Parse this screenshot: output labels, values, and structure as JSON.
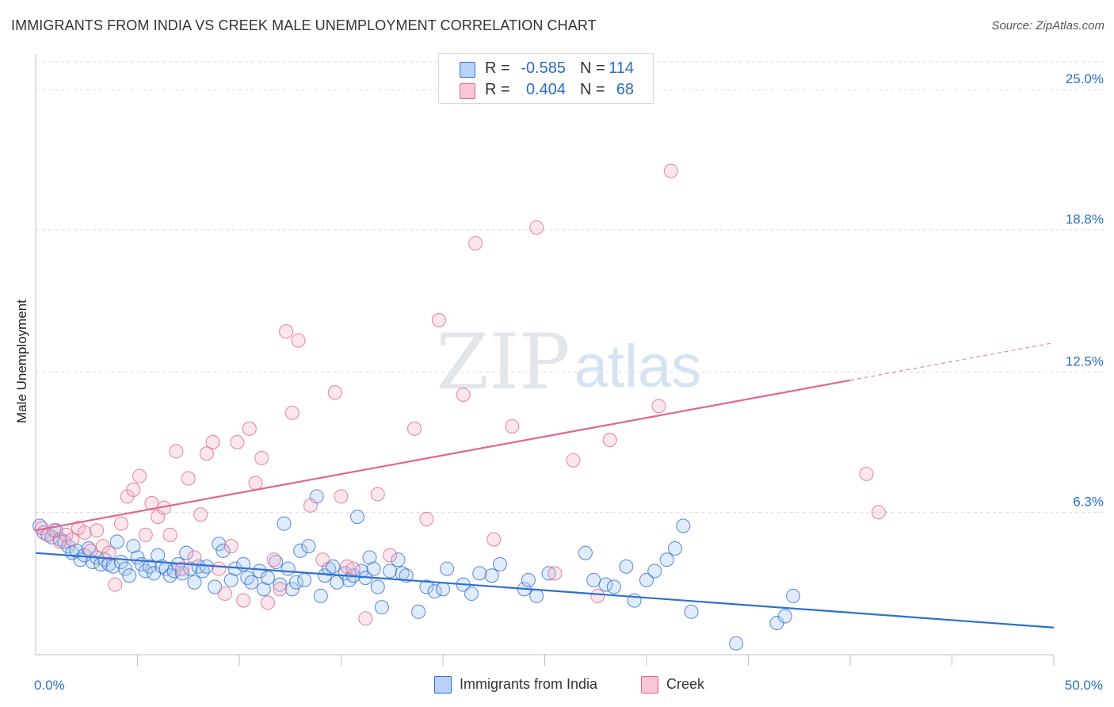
{
  "title": "IMMIGRANTS FROM INDIA VS CREEK MALE UNEMPLOYMENT CORRELATION CHART",
  "source": "Source: ZipAtlas.com",
  "watermark": {
    "zip": "ZIP",
    "atlas": "atlas"
  },
  "colors": {
    "blue": "#2f6fd1",
    "blue_fill": "#aac8f0",
    "blue_swatch": "#b8d2f5",
    "pink": "#e0668f",
    "pink_fill": "#f4b6c9",
    "pink_swatch": "#f8c6d5",
    "accent_text": "#2a6cc8",
    "grid": "#dcdcdc"
  },
  "stats": [
    {
      "r_label": "R =",
      "r_value": "-0.585",
      "n_label": "N =",
      "n_value": "114",
      "color_key": "blue"
    },
    {
      "r_label": "R =",
      "r_value": "0.404",
      "n_label": "N =",
      "n_value": "68",
      "color_key": "pink"
    }
  ],
  "legend": [
    {
      "label": "Immigrants from India",
      "color_key": "blue"
    },
    {
      "label": "Creek",
      "color_key": "pink"
    }
  ],
  "chart_data": {
    "type": "scatter",
    "title": "IMMIGRANTS FROM INDIA VS CREEK MALE UNEMPLOYMENT CORRELATION CHART",
    "xlabel": "",
    "ylabel": "Male Unemployment",
    "xlim": [
      0,
      50
    ],
    "ylim": [
      0,
      26.3
    ],
    "x_tick_labels": [
      {
        "value": 0,
        "label": "0.0%"
      },
      {
        "value": 50,
        "label": "50.0%"
      }
    ],
    "x_minor_ticks": [
      5,
      10,
      15,
      20,
      25,
      30,
      35,
      40,
      45
    ],
    "y_ticks": [
      {
        "value": 6.3,
        "label": "6.3%"
      },
      {
        "value": 12.5,
        "label": "12.5%"
      },
      {
        "value": 18.8,
        "label": "18.8%"
      },
      {
        "value": 25.0,
        "label": "25.0%"
      }
    ],
    "grid": true,
    "series": [
      {
        "name": "Immigrants from India",
        "color_key": "blue",
        "trend": {
          "x0": 0,
          "y0": 4.5,
          "x1": 50,
          "y1": 1.2,
          "dash_from": null
        },
        "points": [
          [
            0.2,
            5.7
          ],
          [
            0.4,
            5.4
          ],
          [
            0.6,
            5.3
          ],
          [
            0.8,
            5.2
          ],
          [
            1.0,
            5.5
          ],
          [
            1.2,
            5.1
          ],
          [
            1.4,
            5.0
          ],
          [
            1.6,
            4.8
          ],
          [
            1.8,
            4.5
          ],
          [
            2.0,
            4.6
          ],
          [
            2.2,
            4.2
          ],
          [
            2.4,
            4.4
          ],
          [
            2.6,
            4.7
          ],
          [
            2.8,
            4.1
          ],
          [
            3.0,
            4.3
          ],
          [
            3.2,
            4.0
          ],
          [
            3.4,
            4.2
          ],
          [
            3.6,
            4.0
          ],
          [
            3.8,
            3.9
          ],
          [
            4.0,
            5.0
          ],
          [
            4.2,
            4.1
          ],
          [
            4.4,
            3.8
          ],
          [
            4.6,
            3.5
          ],
          [
            4.8,
            4.8
          ],
          [
            5.0,
            4.3
          ],
          [
            5.2,
            4.0
          ],
          [
            5.4,
            3.7
          ],
          [
            5.6,
            3.9
          ],
          [
            5.8,
            3.6
          ],
          [
            6.0,
            4.4
          ],
          [
            6.2,
            3.9
          ],
          [
            6.4,
            3.8
          ],
          [
            6.6,
            3.5
          ],
          [
            6.8,
            3.7
          ],
          [
            7.0,
            4.0
          ],
          [
            7.2,
            3.6
          ],
          [
            7.4,
            4.5
          ],
          [
            7.6,
            3.8
          ],
          [
            7.8,
            3.2
          ],
          [
            8.0,
            3.9
          ],
          [
            8.2,
            3.7
          ],
          [
            8.4,
            3.9
          ],
          [
            8.8,
            3.0
          ],
          [
            9.0,
            4.9
          ],
          [
            9.2,
            4.6
          ],
          [
            9.6,
            3.3
          ],
          [
            9.8,
            3.8
          ],
          [
            10.2,
            4.0
          ],
          [
            10.4,
            3.4
          ],
          [
            10.6,
            3.2
          ],
          [
            11.0,
            3.7
          ],
          [
            11.2,
            2.9
          ],
          [
            11.4,
            3.4
          ],
          [
            11.8,
            4.1
          ],
          [
            12.0,
            3.1
          ],
          [
            12.2,
            5.8
          ],
          [
            12.4,
            3.8
          ],
          [
            12.6,
            2.9
          ],
          [
            12.8,
            3.2
          ],
          [
            13.0,
            4.6
          ],
          [
            13.2,
            3.3
          ],
          [
            13.4,
            4.8
          ],
          [
            13.8,
            7.0
          ],
          [
            14.0,
            2.6
          ],
          [
            14.2,
            3.5
          ],
          [
            14.4,
            3.8
          ],
          [
            14.6,
            3.9
          ],
          [
            14.8,
            3.2
          ],
          [
            15.2,
            3.6
          ],
          [
            15.4,
            3.3
          ],
          [
            15.6,
            3.5
          ],
          [
            15.8,
            6.1
          ],
          [
            16.0,
            3.7
          ],
          [
            16.2,
            3.4
          ],
          [
            16.4,
            4.3
          ],
          [
            16.6,
            3.8
          ],
          [
            16.8,
            3.0
          ],
          [
            17.0,
            2.1
          ],
          [
            17.4,
            3.7
          ],
          [
            17.8,
            4.2
          ],
          [
            18.0,
            3.6
          ],
          [
            18.2,
            3.5
          ],
          [
            18.8,
            1.9
          ],
          [
            19.2,
            3.0
          ],
          [
            19.6,
            2.8
          ],
          [
            20.0,
            2.9
          ],
          [
            20.2,
            3.8
          ],
          [
            21.0,
            3.1
          ],
          [
            21.4,
            2.7
          ],
          [
            21.8,
            3.6
          ],
          [
            22.4,
            3.5
          ],
          [
            22.8,
            4.0
          ],
          [
            24.0,
            2.9
          ],
          [
            24.2,
            3.3
          ],
          [
            24.6,
            2.6
          ],
          [
            25.2,
            3.6
          ],
          [
            27.0,
            4.5
          ],
          [
            27.4,
            3.3
          ],
          [
            28.0,
            3.1
          ],
          [
            28.4,
            3.0
          ],
          [
            29.0,
            3.9
          ],
          [
            29.4,
            2.4
          ],
          [
            30.0,
            3.3
          ],
          [
            30.4,
            3.7
          ],
          [
            31.0,
            4.2
          ],
          [
            31.4,
            4.7
          ],
          [
            31.8,
            5.7
          ],
          [
            32.2,
            1.9
          ],
          [
            34.4,
            0.5
          ],
          [
            36.4,
            1.4
          ],
          [
            36.8,
            1.7
          ],
          [
            37.2,
            2.6
          ]
        ]
      },
      {
        "name": "Creek",
        "color_key": "pink",
        "trend": {
          "x0": 0,
          "y0": 5.5,
          "x1": 50,
          "y1": 13.8,
          "dash_from": 40
        },
        "points": [
          [
            0.3,
            5.6
          ],
          [
            0.6,
            5.3
          ],
          [
            0.9,
            5.5
          ],
          [
            1.2,
            5.0
          ],
          [
            1.5,
            5.3
          ],
          [
            1.8,
            5.1
          ],
          [
            2.1,
            5.6
          ],
          [
            2.4,
            5.4
          ],
          [
            2.7,
            4.6
          ],
          [
            3.0,
            5.5
          ],
          [
            3.3,
            4.8
          ],
          [
            3.6,
            4.5
          ],
          [
            3.9,
            3.1
          ],
          [
            4.2,
            5.8
          ],
          [
            4.5,
            7.0
          ],
          [
            4.8,
            7.3
          ],
          [
            5.1,
            7.9
          ],
          [
            5.4,
            5.3
          ],
          [
            5.7,
            6.7
          ],
          [
            6.0,
            6.1
          ],
          [
            6.3,
            6.5
          ],
          [
            6.6,
            5.3
          ],
          [
            6.9,
            9.0
          ],
          [
            7.2,
            3.8
          ],
          [
            7.5,
            7.8
          ],
          [
            7.8,
            4.3
          ],
          [
            8.1,
            6.2
          ],
          [
            8.4,
            8.9
          ],
          [
            8.7,
            9.4
          ],
          [
            9.0,
            3.8
          ],
          [
            9.3,
            2.7
          ],
          [
            9.6,
            4.8
          ],
          [
            9.9,
            9.4
          ],
          [
            10.2,
            2.4
          ],
          [
            10.5,
            10.0
          ],
          [
            10.8,
            7.6
          ],
          [
            11.1,
            8.7
          ],
          [
            11.4,
            2.3
          ],
          [
            11.7,
            4.2
          ],
          [
            12.0,
            2.9
          ],
          [
            12.3,
            14.3
          ],
          [
            12.6,
            10.7
          ],
          [
            12.9,
            13.9
          ],
          [
            13.5,
            6.6
          ],
          [
            14.1,
            4.2
          ],
          [
            14.7,
            11.6
          ],
          [
            15.0,
            7.0
          ],
          [
            15.3,
            3.9
          ],
          [
            15.6,
            3.8
          ],
          [
            16.2,
            1.6
          ],
          [
            16.8,
            7.1
          ],
          [
            17.4,
            4.4
          ],
          [
            18.6,
            10.0
          ],
          [
            19.2,
            6.0
          ],
          [
            19.8,
            14.8
          ],
          [
            21.0,
            11.5
          ],
          [
            21.6,
            18.2
          ],
          [
            22.5,
            5.1
          ],
          [
            23.4,
            10.1
          ],
          [
            24.6,
            18.9
          ],
          [
            25.5,
            3.6
          ],
          [
            26.4,
            8.6
          ],
          [
            27.6,
            2.6
          ],
          [
            28.2,
            9.5
          ],
          [
            30.6,
            11.0
          ],
          [
            31.2,
            21.4
          ],
          [
            40.8,
            8.0
          ],
          [
            41.4,
            6.3
          ]
        ]
      }
    ]
  }
}
